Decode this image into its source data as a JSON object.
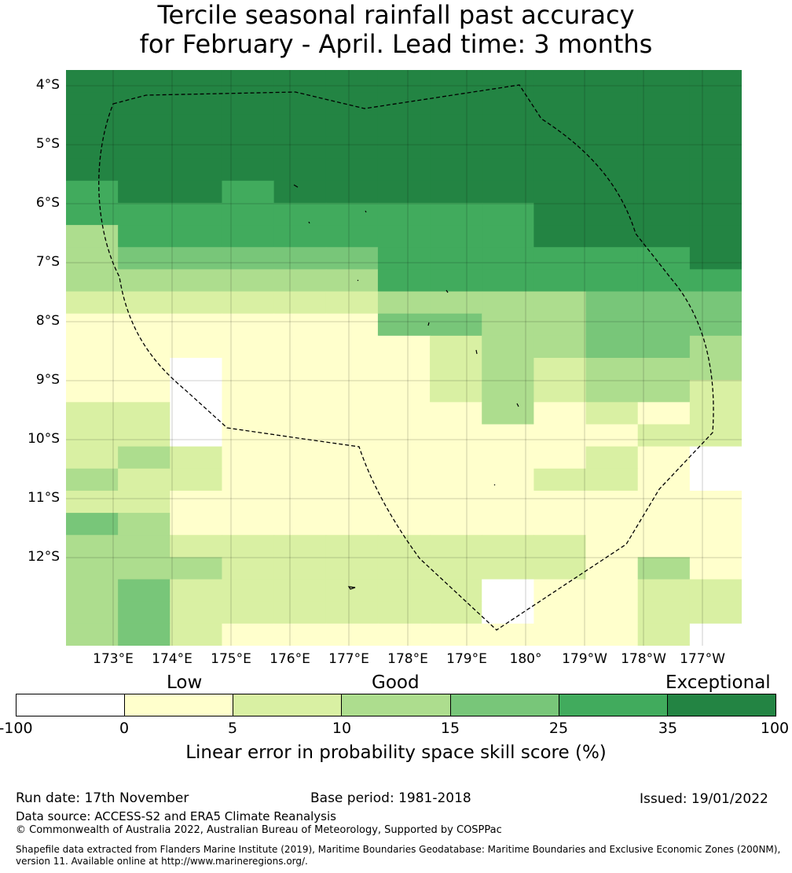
{
  "title": {
    "line1": "Tercile seasonal rainfall past accuracy",
    "line2": "for February - April. Lead time: 3 months"
  },
  "map": {
    "grid": [
      "6666666666666",
      "6666666666666",
      "6666666666666",
      "6666666666666",
      "6666666666666",
      "5665666666666",
      "5555555556666",
      "3555555556666",
      "3444445555556",
      "3333335555555",
      "2222223333444",
      "1111114433444",
      "1111111233443",
      "1101111232333",
      "1101111232332",
      "2201111131212",
      "2201111111122",
      "2321111111210",
      "3221111112210",
      "2211111111111",
      "4311111111111",
      "3322222222111",
      "3332222222131",
      "3422222201122",
      "3422222201122",
      "3421111111120"
    ],
    "lat_labels": [
      "4°S",
      "5°S",
      "6°S",
      "7°S",
      "8°S",
      "9°S",
      "10°S",
      "11°S",
      "12°S"
    ],
    "lon_labels": [
      "173°E",
      "174°E",
      "175°E",
      "176°E",
      "177°E",
      "178°E",
      "179°E",
      "180°",
      "179°W",
      "178°W",
      "177°W"
    ]
  },
  "legend": {
    "qualitative": [
      "Low",
      "Good",
      "Exceptional"
    ],
    "ticks": [
      "-100",
      "0",
      "5",
      "10",
      "15",
      "25",
      "35",
      "100"
    ],
    "colors": [
      "#ffffff",
      "#ffffcc",
      "#d9f0a3",
      "#addd8e",
      "#78c679",
      "#41ab5d",
      "#238443"
    ],
    "label": "Linear error in probability space skill score (%)"
  },
  "footer": {
    "run_date": "Run date: 17th November",
    "base_period": "Base period: 1981-2018",
    "issued": "Issued: 19/01/2022",
    "data_source": "Data source: ACCESS-S2 and ERA5 Climate Reanalysis",
    "copyright": "© Commonwealth of Australia 2022, Australian Bureau of Meteorology, Supported by COSPPac",
    "shapefile": "Shapefile data extracted from Flanders Marine Institute (2019), Maritime Boundaries Geodatabase: Maritime Boundaries and Exclusive Economic Zones (200NM), version 11. Available online at http://www.marineregions.org/."
  }
}
